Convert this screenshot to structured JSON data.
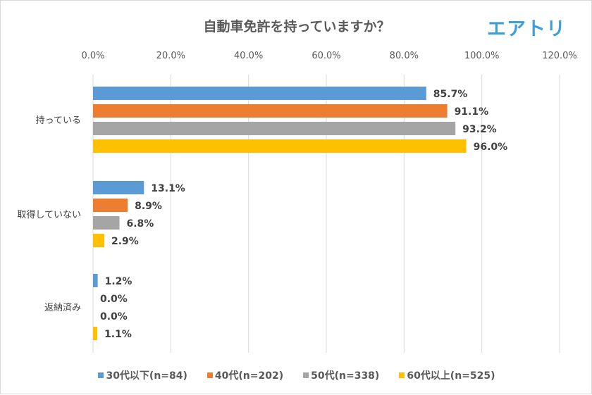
{
  "title": "自動車免許を持っていますか？",
  "logo": "エアトリ",
  "chart_data": {
    "type": "bar",
    "orientation": "horizontal",
    "title": "自動車免許を持っていますか？",
    "categories": [
      "持っている",
      "取得していない",
      "返納済み"
    ],
    "xlim": [
      0,
      120
    ],
    "xticks": [
      "0.0%",
      "20.0%",
      "40.0%",
      "60.0%",
      "80.0%",
      "100.0%",
      "120.0%"
    ],
    "grid": true,
    "legend_position": "bottom",
    "series": [
      {
        "name": "30代以下(n=84)",
        "color": "#5b9bd5",
        "values": [
          85.7,
          13.1,
          1.2
        ],
        "labels": [
          "85.7%",
          "13.1%",
          "1.2%"
        ]
      },
      {
        "name": "40代(n=202)",
        "color": "#ed7d31",
        "values": [
          91.1,
          8.9,
          0.0
        ],
        "labels": [
          "91.1%",
          "8.9%",
          "0.0%"
        ]
      },
      {
        "name": "50代(n=338)",
        "color": "#a5a5a5",
        "values": [
          93.2,
          6.8,
          0.0
        ],
        "labels": [
          "93.2%",
          "6.8%",
          "0.0%"
        ]
      },
      {
        "name": "60代以上(n=525)",
        "color": "#ffc000",
        "values": [
          96.0,
          2.9,
          1.1
        ],
        "labels": [
          "96.0%",
          "2.9%",
          "1.1%"
        ]
      }
    ]
  }
}
